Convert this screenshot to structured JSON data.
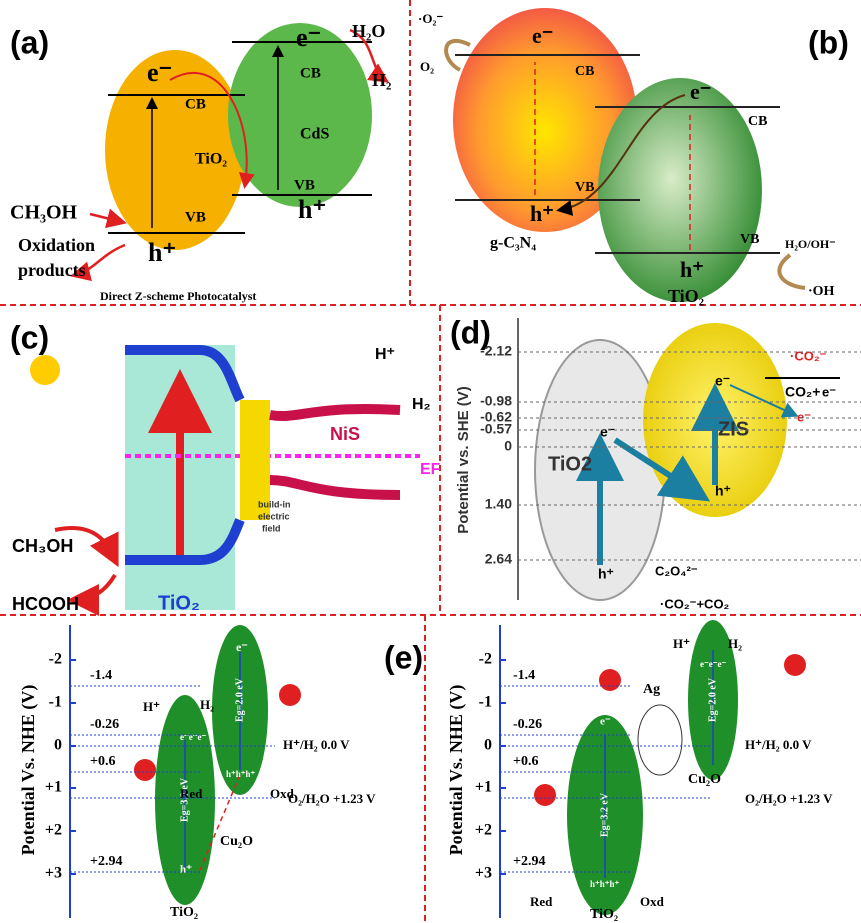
{
  "panels": {
    "a": {
      "label": "(a)",
      "texts": [
        "e⁻",
        "CB",
        "TiO₂",
        "VB",
        "h⁺",
        "e⁻",
        "CB",
        "CdS",
        "VB",
        "h⁺",
        "H₂O",
        "H₂",
        "CH₃OH",
        "Oxidation",
        "products",
        "Direct Z-scheme Photocatalyst"
      ]
    },
    "b": {
      "label": "(b)",
      "texts": [
        "·O₂⁻",
        "O₂",
        "e⁻",
        "CB",
        "VB",
        "h⁺",
        "g-C₃N₄",
        "e⁻",
        "CB",
        "VB",
        "h⁺",
        "TiO₂",
        "H₂O/OH⁻",
        "·OH"
      ]
    },
    "c": {
      "label": "(c)",
      "texts": [
        "H⁺",
        "H₂",
        "EF",
        "NiS",
        "build-in",
        "electric",
        "field",
        "CH₃OH",
        "HCOOH",
        "TiO₂"
      ]
    },
    "d": {
      "label": "(d)",
      "axis_label": "Potential  vs. SHE (V)",
      "ticks": [
        "-2.12",
        "-0.98",
        "-0.62",
        "-0.57",
        "0",
        "1.40",
        "2.64"
      ],
      "texts": [
        "TiO2",
        "ZIS",
        "e⁻",
        "e⁻",
        "h⁺",
        "h⁺",
        "·CO₂⁻",
        "CO₂+",
        "e⁻",
        "e⁻",
        "C₂O₄²⁻",
        "·CO₂⁻+CO₂"
      ]
    },
    "e": {
      "label": "(e)",
      "left": {
        "axis_label": "Potential Vs. NHE (V)",
        "ticks": [
          "-2",
          "-1",
          "0",
          "+1",
          "+2",
          "+3"
        ],
        "texts": [
          "-1.4",
          "-0.26",
          "+0.6",
          "+2.94",
          "H⁺/H₂  0.0 V",
          "O₂/H₂O +1.23 V",
          "H⁺",
          "H₂",
          "e⁻e⁻e⁻",
          "Eg=3.2 eV",
          "h⁺",
          "TiO₂",
          "e⁻",
          "Eg=2.0 eV",
          "h⁺h⁺h⁺",
          "Red",
          "Oxd",
          "Cu₂O"
        ]
      },
      "right": {
        "axis_label": "Potential Vs. NHE (V)",
        "ticks": [
          "-2",
          "-1",
          "0",
          "+1",
          "+2",
          "+3"
        ],
        "texts": [
          "-1.4",
          "-0.26",
          "+0.6",
          "+2.94",
          "H⁺/H₂  0.0 V",
          "O₂/H₂O +1.23 V",
          "H⁺",
          "H₂",
          "Ag",
          "e⁻",
          "Eg=3.2 eV",
          "h⁺h⁺h⁺",
          "Red",
          "Oxd",
          "TiO₂",
          "e⁻e⁻e⁻",
          "Eg=2.0 eV",
          "Cu₂O"
        ]
      }
    }
  }
}
